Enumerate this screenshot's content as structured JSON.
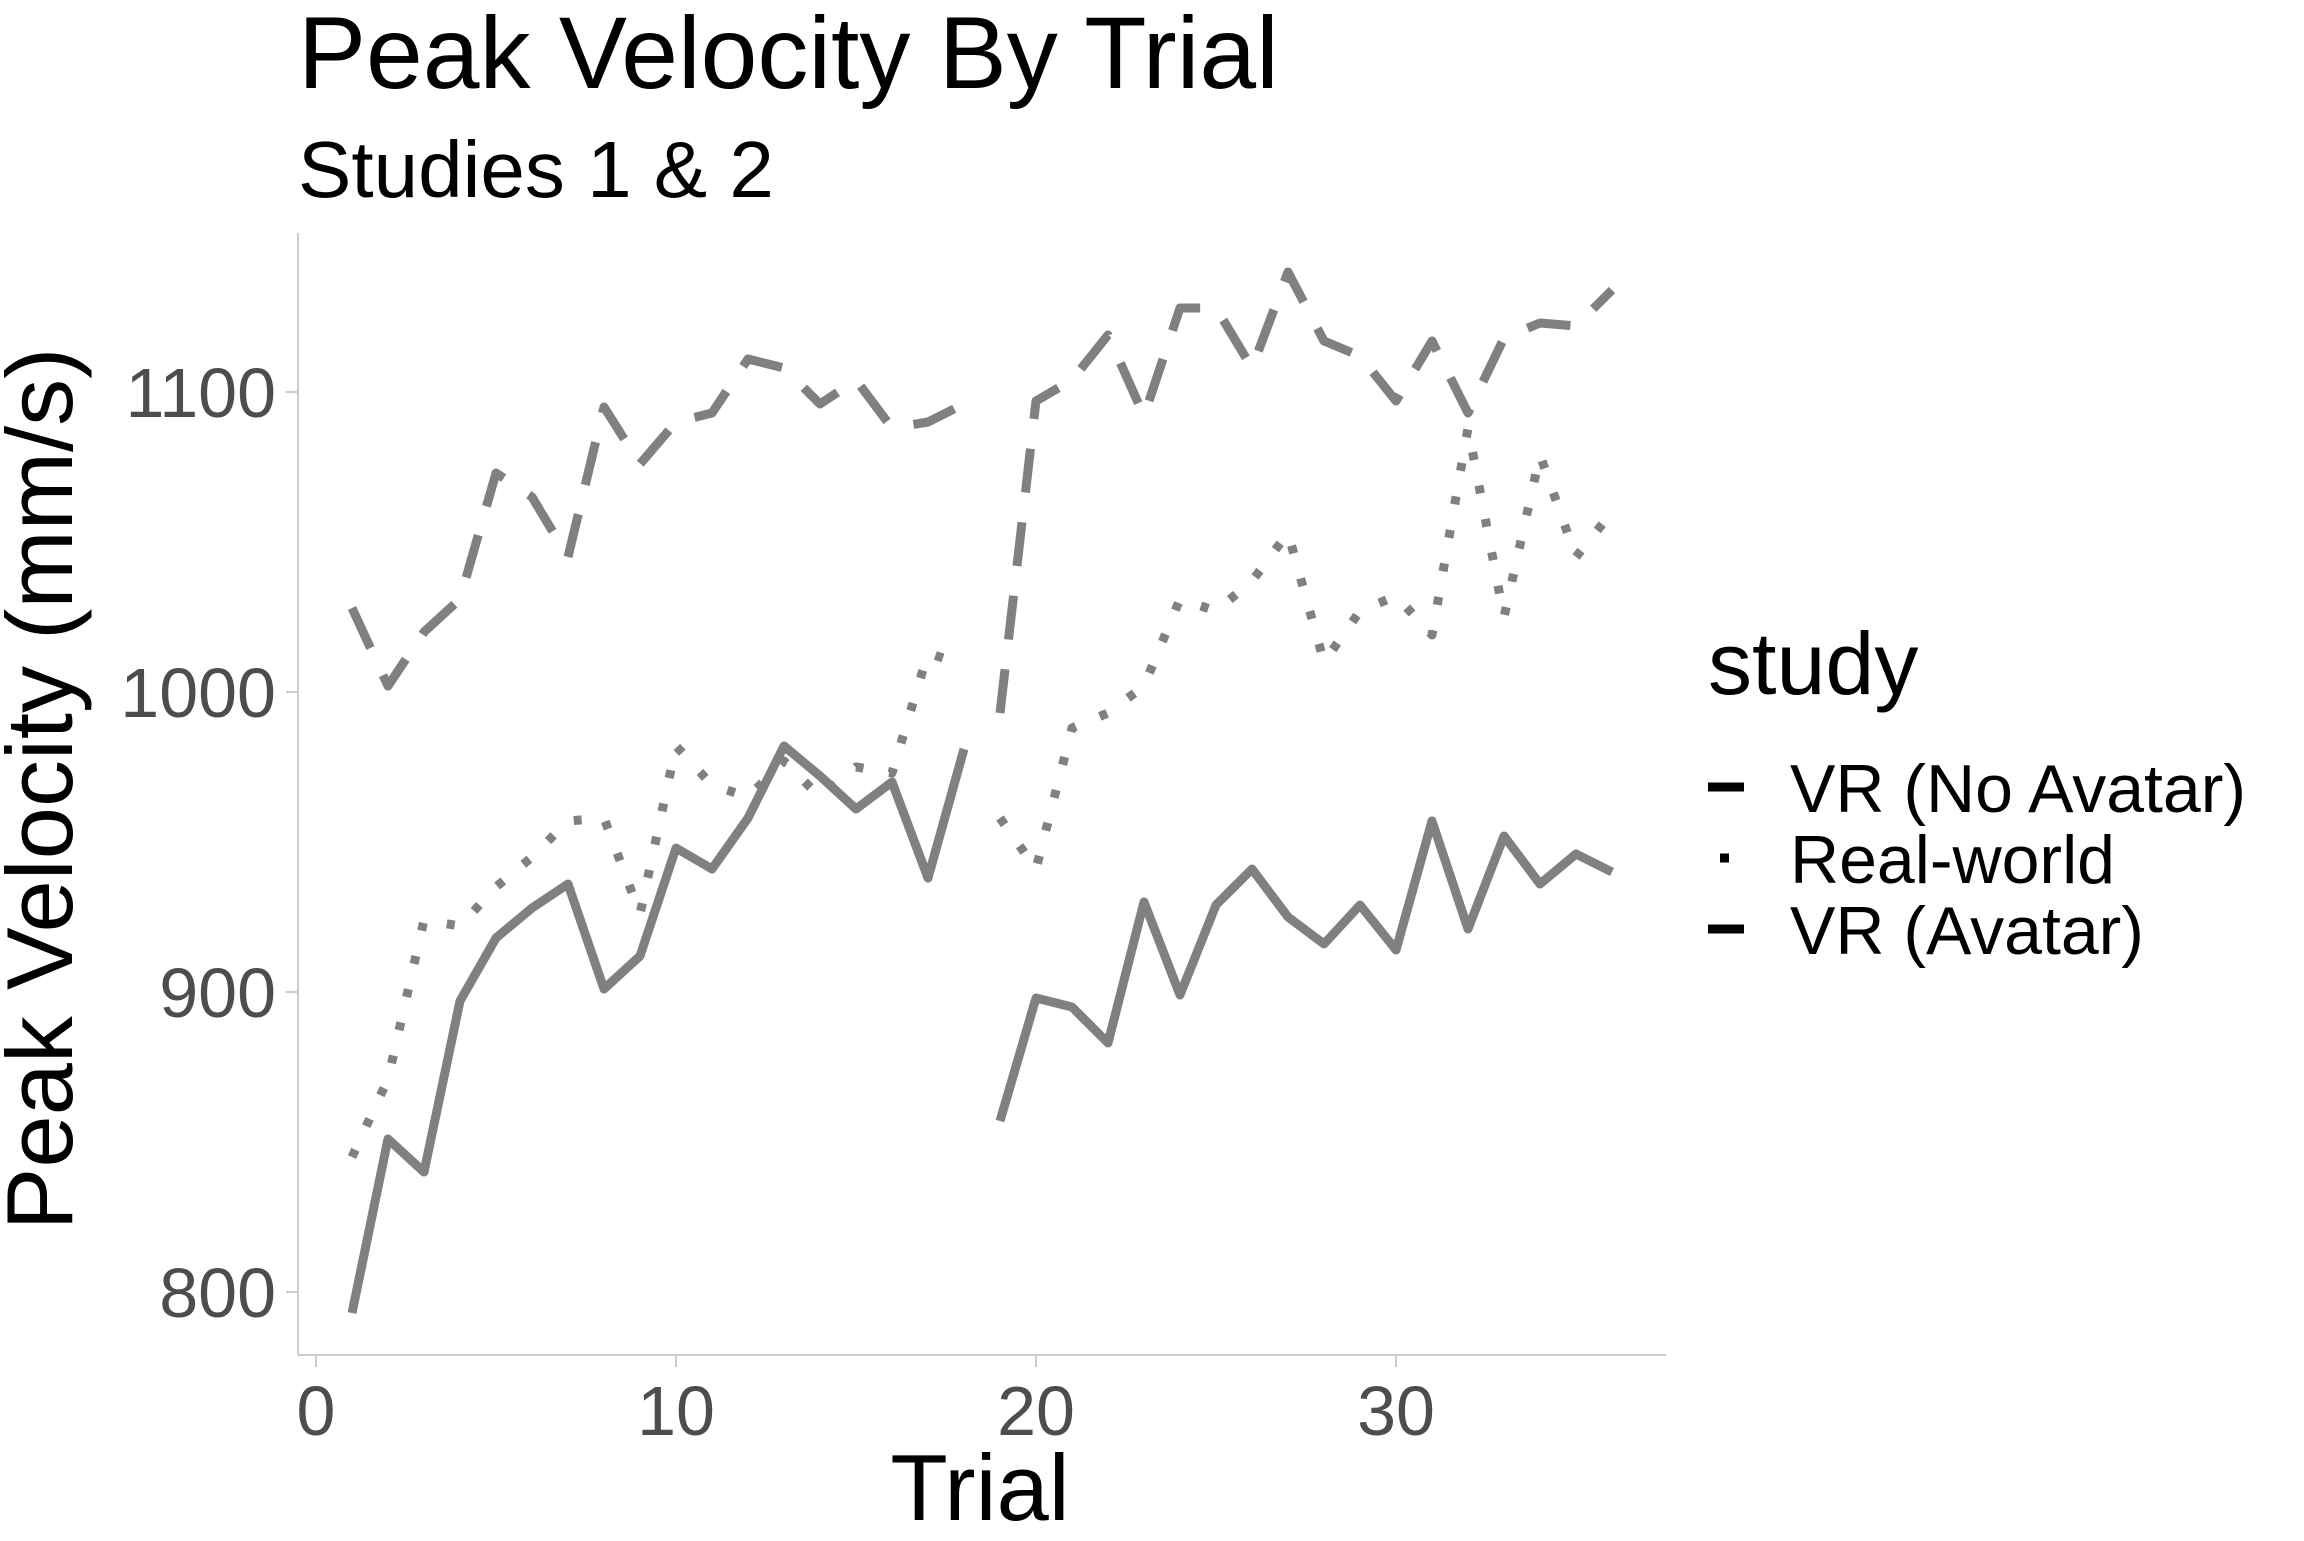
{
  "chart_data": {
    "type": "line",
    "title": "Peak Velocity By Trial",
    "subtitle": "Studies 1 & 2",
    "xlabel": "Trial",
    "ylabel": "Peak Velocity (mm/s)",
    "xlim": [
      -0.5,
      37.5
    ],
    "ylim": [
      779,
      1153
    ],
    "xticks": [
      0,
      10,
      20,
      30
    ],
    "yticks": [
      800,
      900,
      1000,
      1100
    ],
    "xtick_labels": [
      "0",
      "10",
      "20",
      "30"
    ],
    "ytick_labels": [
      "800",
      "900",
      "1000",
      "1100"
    ],
    "grid": false,
    "legend_position": "right",
    "legend_title": "study",
    "line_color": "#808080",
    "series": [
      {
        "name": "VR (No Avatar)",
        "linetype": "solid",
        "segments": [
          {
            "x": [
              1,
              2,
              3,
              4,
              5,
              6,
              7,
              8,
              9,
              10,
              11,
              12,
              13,
              14,
              15,
              16,
              17,
              18
            ],
            "y": [
              793,
              851,
              840,
              897,
              918,
              928,
              936,
              901,
              912,
              948,
              941,
              958,
              982,
              972,
              961,
              970,
              938,
              981
            ]
          },
          {
            "x": [
              19,
              20,
              21,
              22,
              23,
              24,
              25,
              26,
              27,
              28,
              29,
              30,
              31,
              32,
              33,
              34,
              35,
              36
            ],
            "y": [
              857,
              898,
              895,
              883,
              930,
              899,
              929,
              941,
              925,
              916,
              929,
              914,
              957,
              921,
              952,
              936,
              946,
              940
            ]
          }
        ]
      },
      {
        "name": "Real-world",
        "linetype": "dotted",
        "segments": [
          {
            "x": [
              1,
              2,
              3,
              4,
              5,
              6,
              7,
              8,
              9,
              10,
              11,
              12,
              13,
              14,
              15,
              16,
              17,
              18
            ],
            "y": [
              845,
              871,
              924,
              922,
              935,
              945,
              957,
              958,
              926,
              982,
              969,
              965,
              977,
              965,
              975,
              973,
              1013,
              1009
            ]
          },
          {
            "x": [
              19,
              20,
              21,
              22,
              23,
              24,
              25,
              26,
              27,
              28,
              29,
              30,
              31,
              32,
              33,
              34,
              35,
              36
            ],
            "y": [
              958,
              941,
              988,
              993,
              1002,
              1031,
              1027,
              1037,
              1053,
              1010,
              1027,
              1032,
              1019,
              1088,
              1025,
              1079,
              1045,
              1060
            ]
          }
        ]
      },
      {
        "name": "VR (Avatar)",
        "linetype": "longdash",
        "segments": [
          {
            "x": [
              1,
              2,
              3,
              4,
              5,
              6,
              7,
              8,
              9,
              10,
              11,
              12,
              13,
              14,
              15,
              16,
              17,
              18
            ],
            "y": [
              1028,
              1002,
              1020,
              1031,
              1073,
              1065,
              1045,
              1095,
              1076,
              1090,
              1093,
              1111,
              1108,
              1096,
              1104,
              1088,
              1090,
              1096
            ]
          },
          {
            "x": [
              19,
              20,
              21,
              22,
              23,
              24,
              25,
              26,
              27,
              28,
              29,
              30,
              31,
              32,
              33,
              34,
              35,
              36
            ],
            "y": [
              993,
              1097,
              1104,
              1119,
              1092,
              1128,
              1128,
              1108,
              1140,
              1117,
              1112,
              1097,
              1117,
              1093,
              1118,
              1123,
              1122,
              1134
            ]
          }
        ]
      }
    ]
  }
}
